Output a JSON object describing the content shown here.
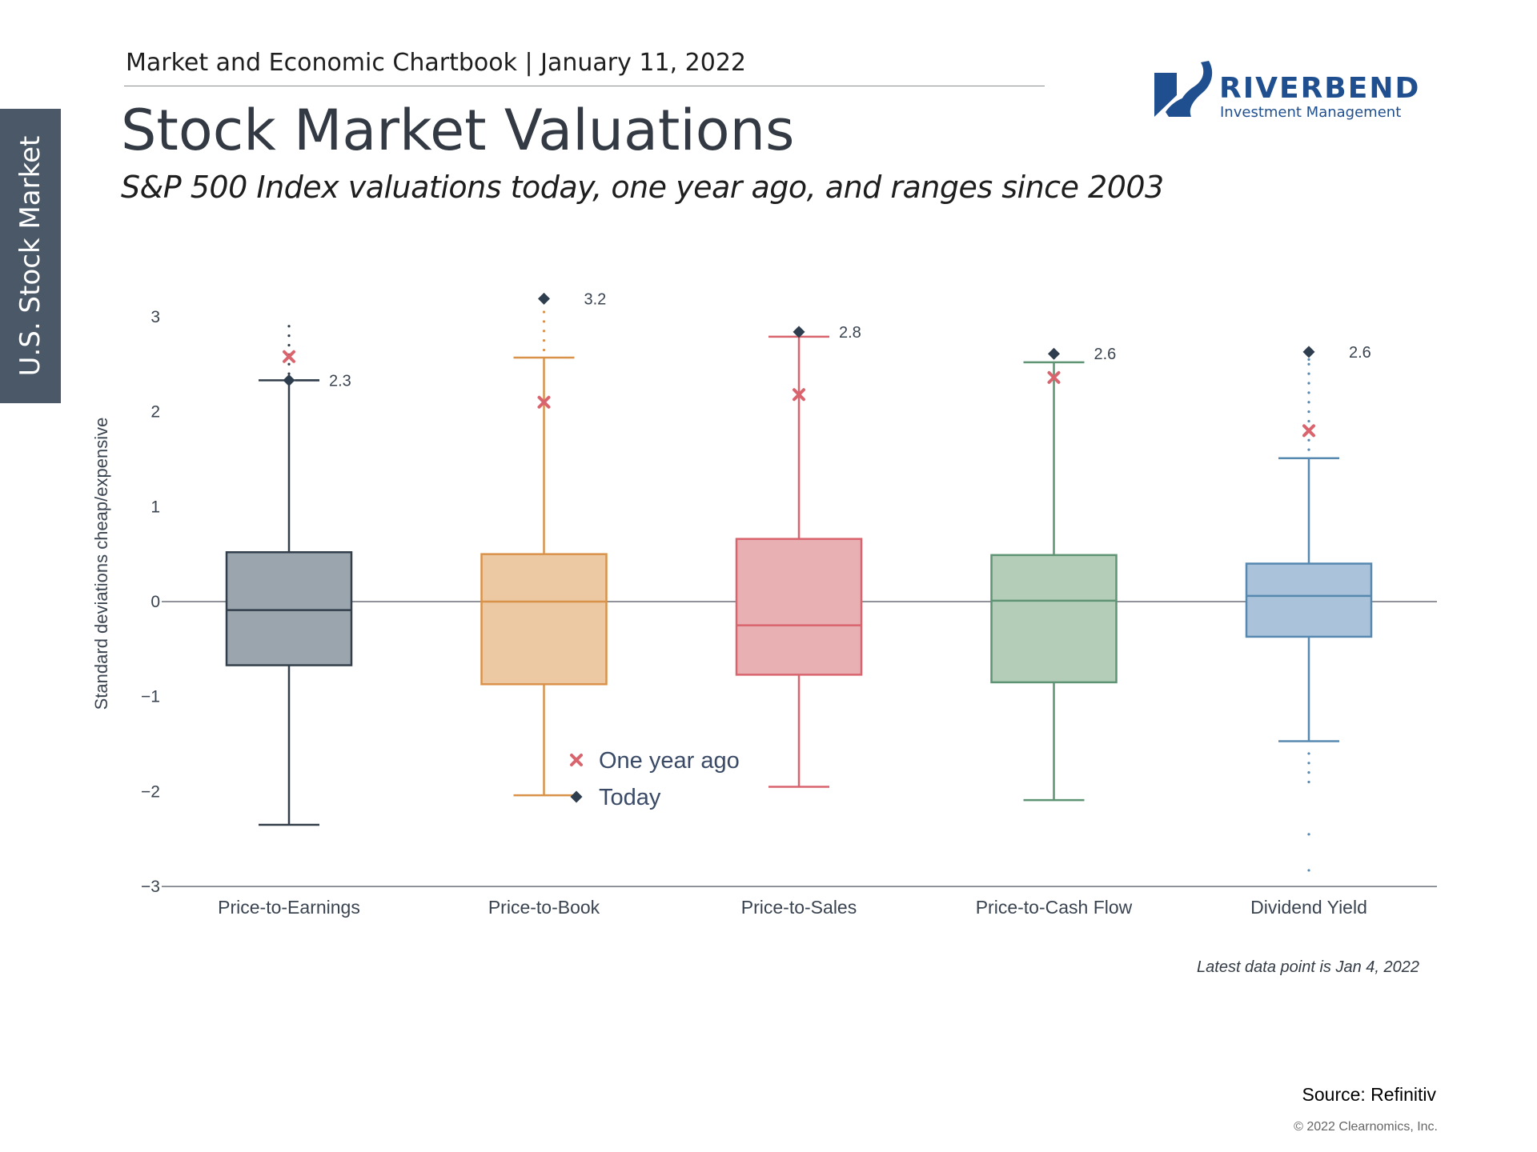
{
  "side_tab": {
    "label": "U.S. Stock Market"
  },
  "header": {
    "publication": "Market and Economic Chartbook | January 11, 2022",
    "title": "Stock Market Valuations",
    "subtitle": "S&P 500 Index valuations today, one year ago, and ranges since 2003"
  },
  "logo": {
    "name": "RIVERBEND",
    "tagline": "Investment Management",
    "color": "#1f4f8f"
  },
  "chart_data": {
    "type": "box",
    "ylabel": "Standard deviations cheap/expensive",
    "ylim": [
      -3,
      3.2
    ],
    "yticks": [
      {
        "value": 3,
        "label": "3"
      },
      {
        "value": 2,
        "label": "2"
      },
      {
        "value": 1,
        "label": "1"
      },
      {
        "value": 0,
        "label": "0"
      },
      {
        "value": -1,
        "label": "−1"
      },
      {
        "value": -2,
        "label": "−2"
      },
      {
        "value": -3,
        "label": "−3"
      }
    ],
    "grid": false,
    "legend": {
      "placement": "bottom-center",
      "items": [
        {
          "marker": "x",
          "label": "One year ago",
          "color": "#d9646e"
        },
        {
          "marker": "diamond",
          "label": "Today",
          "color": "#2f3e4e"
        }
      ]
    },
    "categories": [
      "Price-to-Earnings",
      "Price-to-Book",
      "Price-to-Sales",
      "Price-to-Cash Flow",
      "Dividend Yield"
    ],
    "boxes": [
      {
        "category": "Price-to-Earnings",
        "whisker_low": -2.35,
        "q1": -0.67,
        "median": -0.09,
        "q3": 0.52,
        "whisker_high": 2.33,
        "outliers_high": [
          2.4,
          2.5,
          2.6,
          2.7,
          2.8,
          2.9
        ],
        "outliers_low": [],
        "today": 2.33,
        "today_label": "2.3",
        "one_year_ago": 2.58,
        "color": "#323f4b",
        "fill": "#9aa5ae"
      },
      {
        "category": "Price-to-Book",
        "whisker_low": -2.04,
        "q1": -0.87,
        "median": 0.0,
        "q3": 0.5,
        "whisker_high": 2.57,
        "outliers_high": [
          2.65,
          2.75,
          2.85,
          2.95,
          3.05
        ],
        "outliers_low": [],
        "today": 3.19,
        "today_label": "3.2",
        "one_year_ago": 2.1,
        "color": "#d9924a",
        "fill": "#ecc9a3"
      },
      {
        "category": "Price-to-Sales",
        "whisker_low": -1.95,
        "q1": -0.77,
        "median": -0.25,
        "q3": 0.66,
        "whisker_high": 2.79,
        "outliers_high": [],
        "outliers_low": [],
        "today": 2.84,
        "today_label": "2.8",
        "one_year_ago": 2.18,
        "color": "#d9646e",
        "fill": "#e8b0b3"
      },
      {
        "category": "Price-to-Cash Flow",
        "whisker_low": -2.09,
        "q1": -0.85,
        "median": 0.01,
        "q3": 0.49,
        "whisker_high": 2.52,
        "outliers_high": [],
        "outliers_low": [],
        "today": 2.61,
        "today_label": "2.6",
        "one_year_ago": 2.36,
        "color": "#5e9373",
        "fill": "#b3cdb9"
      },
      {
        "category": "Dividend Yield",
        "whisker_low": -1.47,
        "q1": -0.37,
        "median": 0.06,
        "q3": 0.4,
        "whisker_high": 1.51,
        "outliers_high": [
          1.6,
          1.7,
          1.8,
          1.9,
          2.0,
          2.1,
          2.2,
          2.3,
          2.4,
          2.5,
          2.55
        ],
        "outliers_low": [
          -1.6,
          -1.7,
          -1.8,
          -1.9,
          -2.45,
          -2.83
        ],
        "today": 2.63,
        "today_label": "2.6",
        "one_year_ago": 1.8,
        "color": "#5688b0",
        "fill": "#aac3db"
      }
    ]
  },
  "footnote": "Latest data point is Jan 4, 2022",
  "source": "Source: Refinitiv",
  "copyright": "© 2022 Clearnomics, Inc."
}
